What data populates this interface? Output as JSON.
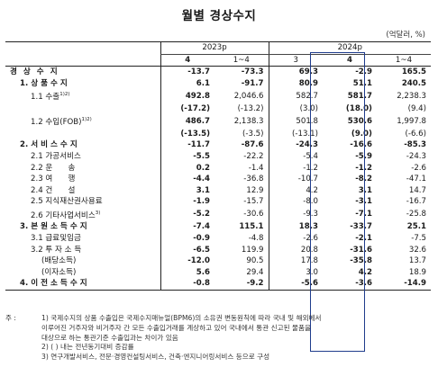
{
  "title": "월별 경상수지",
  "unit": "(억달러, %)",
  "header": {
    "year_2023": "2023p",
    "year_2024": "2024p",
    "cols": [
      "4",
      "1~4",
      "3",
      "4",
      "1~4"
    ]
  },
  "rows": [
    {
      "label": "경 상 수 지",
      "values": [
        "-13.7",
        "-73.3",
        "69.3",
        "-2.9",
        "165.5"
      ]
    },
    {
      "label": "1. 상 품 수 지",
      "values": [
        "6.1",
        "-91.7",
        "80.9",
        "51.1",
        "240.5"
      ]
    },
    {
      "label": "1.1 수출",
      "sup": "1)2)",
      "values": [
        "492.8",
        "2,046.6",
        "582.7",
        "581.7",
        "2,238.3"
      ]
    },
    {
      "label": "",
      "values": [
        "(-17.2)",
        "(-13.2)",
        "(3.0)",
        "(18.0)",
        "(9.4)"
      ]
    },
    {
      "label": "1.2 수입(FOB)",
      "sup": "1)2)",
      "values": [
        "486.7",
        "2,138.3",
        "501.8",
        "530.6",
        "1,997.8"
      ]
    },
    {
      "label": "",
      "values": [
        "(-13.5)",
        "(-3.5)",
        "(-13.1)",
        "(9.0)",
        "(-6.6)"
      ]
    },
    {
      "label": "2. 서 비 스 수 지",
      "values": [
        "-11.7",
        "-87.6",
        "-24.3",
        "-16.6",
        "-85.3"
      ]
    },
    {
      "label": "2.1 가공서비스",
      "values": [
        "-5.5",
        "-22.2",
        "-5.4",
        "-5.9",
        "-24.3"
      ]
    },
    {
      "label": "2.2 운　　송",
      "values": [
        "0.2",
        "-1.4",
        "-1.2",
        "-1.2",
        "-2.6"
      ]
    },
    {
      "label": "2.3 여　　행",
      "values": [
        "-4.4",
        "-36.8",
        "-10.7",
        "-8.2",
        "-47.1"
      ]
    },
    {
      "label": "2.4 건　　설",
      "values": [
        "3.1",
        "12.9",
        "4.2",
        "3.1",
        "14.7"
      ]
    },
    {
      "label": "2.5 지식재산권사용료",
      "values": [
        "-1.9",
        "-15.7",
        "-8.0",
        "-3.1",
        "-16.7"
      ]
    },
    {
      "label": "2.6 기타사업서비스",
      "sup": "3)",
      "values": [
        "-5.2",
        "-30.6",
        "-9.3",
        "-7.1",
        "-25.8"
      ]
    },
    {
      "label": "3. 본 원 소 득 수 지",
      "values": [
        "-7.4",
        "115.1",
        "18.3",
        "-33.7",
        "25.1"
      ]
    },
    {
      "label": "3.1 급료및임금",
      "values": [
        "-0.9",
        "-4.8",
        "-2.6",
        "-2.1",
        "-7.5"
      ]
    },
    {
      "label": "3.2 투 자 소 득",
      "values": [
        "-6.5",
        "119.9",
        "20.8",
        "-31.6",
        "32.6"
      ]
    },
    {
      "label": "(배당소득)",
      "values": [
        "-12.0",
        "90.5",
        "17.8",
        "-35.8",
        "13.7"
      ]
    },
    {
      "label": "(이자소득)",
      "values": [
        "5.6",
        "29.4",
        "3.0",
        "4.2",
        "18.9"
      ]
    },
    {
      "label": "4. 이 전 소 득 수 지",
      "values": [
        "-0.8",
        "-9.2",
        "-5.6",
        "-3.6",
        "-14.9"
      ]
    }
  ],
  "notes": {
    "prefix": "주 :",
    "n1a": "1) 국제수지의 상품 수출입은 국제수지매뉴얼(BPM6)의 소유권 변동원칙에 따라 국내 및 해외에서",
    "n1b": "이루어진 거주자와 비거주자 간 모든 수출입거래를 계상하고 있어 국내에서 통관 신고된 물품을",
    "n1c": "대상으로 하는 통관기준 수출입과는 차이가 있음",
    "n2": "2) ( ) 내는 전년동기대비 증감률",
    "n3": "3) 연구개발서비스, 전문·경영컨설팅서비스, 건축·엔지니어링서비스 등으로 구성"
  }
}
